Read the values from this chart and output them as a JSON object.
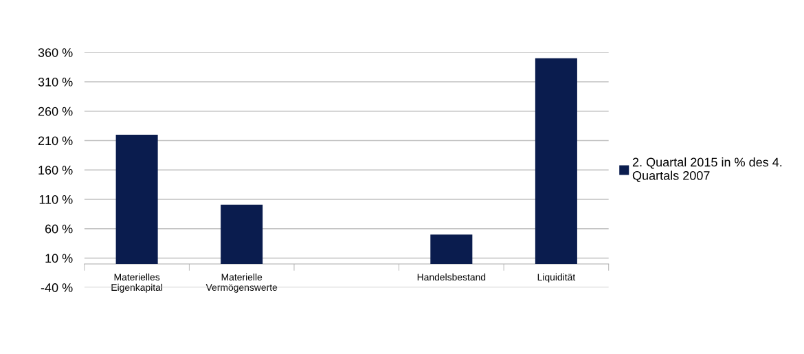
{
  "chart_data": {
    "type": "bar",
    "categories": [
      "Materielles\nEigenkapital",
      "Materielle\nVermögenswerte",
      null,
      "Handelsbestand",
      "Liquidität"
    ],
    "series": [
      {
        "name": "2. Quartal 2015 in % des 4.\nQuartals 2007",
        "color": "#0a1c4e",
        "values": [
          220,
          101,
          null,
          50,
          350
        ]
      }
    ],
    "ylim": [
      -40,
      360
    ],
    "yticks": [
      {
        "value": -40,
        "label": "-40 %"
      },
      {
        "value": 10,
        "label": "10 %"
      },
      {
        "value": 60,
        "label": "60 %"
      },
      {
        "value": 110,
        "label": "110 %"
      },
      {
        "value": 160,
        "label": "160 %"
      },
      {
        "value": 210,
        "label": "210 %"
      },
      {
        "value": 260,
        "label": "260 %"
      },
      {
        "value": 310,
        "label": "310 %"
      },
      {
        "value": 360,
        "label": "360 %"
      }
    ],
    "grid": "y",
    "legend": "right"
  }
}
